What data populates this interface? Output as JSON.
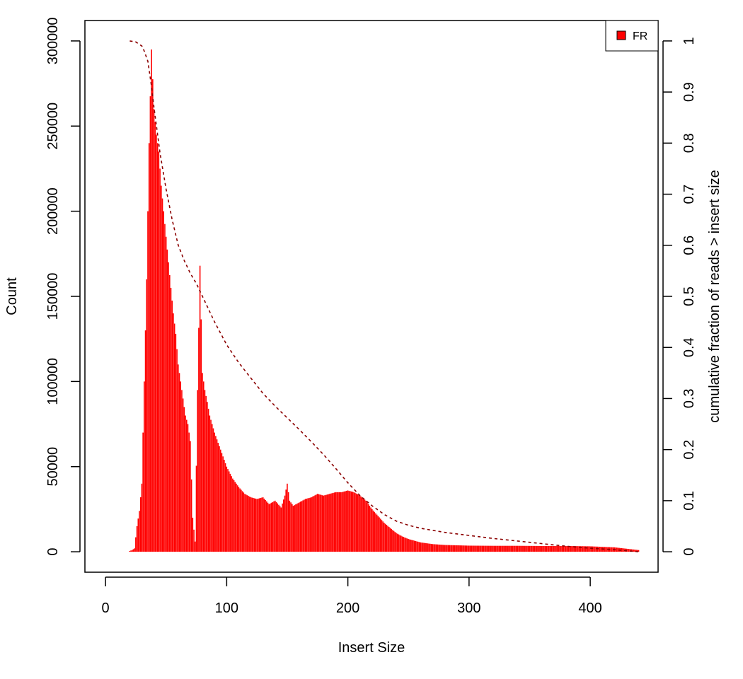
{
  "chart_data": {
    "type": "bar",
    "title": "",
    "xlabel": "Insert Size",
    "ylabel": "Count",
    "y2label": "cumulative fraction of reads > insert size",
    "xlim": [
      -17,
      456
    ],
    "ylim": [
      -12000,
      312000
    ],
    "y2lim": [
      -0.04,
      1.04
    ],
    "x_ticks": [
      0,
      100,
      200,
      300,
      400
    ],
    "y_ticks": [
      0,
      50000,
      100000,
      150000,
      200000,
      250000,
      300000
    ],
    "y2_ticks": [
      0,
      0.1,
      0.2,
      0.3,
      0.4,
      0.5,
      0.6,
      0.7,
      0.8,
      0.9,
      1
    ],
    "grid": false,
    "legend_position": "top-right",
    "series": [
      {
        "name": "FR",
        "color": "#ff0000",
        "x": [
          20,
          22,
          24,
          26,
          28,
          30,
          32,
          34,
          36,
          38,
          40,
          42,
          44,
          46,
          48,
          50,
          52,
          54,
          56,
          58,
          60,
          62,
          64,
          66,
          68,
          70,
          72,
          74,
          76,
          78,
          80,
          82,
          84,
          86,
          88,
          90,
          92,
          94,
          96,
          98,
          100,
          105,
          110,
          115,
          120,
          125,
          130,
          135,
          140,
          145,
          148,
          150,
          152,
          155,
          160,
          165,
          170,
          175,
          180,
          185,
          190,
          195,
          200,
          205,
          210,
          215,
          220,
          225,
          230,
          235,
          240,
          245,
          250,
          255,
          260,
          270,
          280,
          290,
          300,
          320,
          340,
          360,
          380,
          400,
          420,
          430,
          440
        ],
        "values": [
          500,
          1000,
          2000,
          15000,
          24000,
          40000,
          100000,
          160000,
          240000,
          295000,
          260000,
          245000,
          235000,
          215000,
          200000,
          185000,
          170000,
          155000,
          140000,
          128000,
          110000,
          100000,
          90000,
          80000,
          75000,
          65000,
          20000,
          6000,
          95000,
          168000,
          105000,
          95000,
          88000,
          80000,
          75000,
          70000,
          66000,
          62000,
          58000,
          54000,
          50000,
          43000,
          38000,
          34000,
          32000,
          31000,
          32000,
          28000,
          30000,
          26000,
          33000,
          40000,
          30000,
          27000,
          29000,
          31000,
          32000,
          34000,
          33000,
          34000,
          35000,
          35000,
          36000,
          35000,
          33000,
          30000,
          25000,
          21000,
          17000,
          14000,
          11000,
          9000,
          7500,
          6500,
          5500,
          4500,
          4000,
          3800,
          3600,
          3500,
          3500,
          3400,
          3400,
          3200,
          2600,
          1800,
          1000
        ]
      },
      {
        "name": "",
        "axis": "right",
        "style": "dashed",
        "color": "#8b0000",
        "x": [
          20,
          25,
          30,
          32,
          35,
          38,
          40,
          45,
          50,
          55,
          60,
          65,
          70,
          75,
          80,
          90,
          100,
          110,
          120,
          130,
          140,
          150,
          160,
          170,
          180,
          190,
          200,
          210,
          220,
          230,
          240,
          250,
          260,
          280,
          300,
          320,
          340,
          360,
          380,
          400,
          420,
          440
        ],
        "values": [
          1.0,
          0.998,
          0.99,
          0.98,
          0.96,
          0.91,
          0.87,
          0.78,
          0.71,
          0.65,
          0.6,
          0.57,
          0.545,
          0.525,
          0.5,
          0.45,
          0.405,
          0.37,
          0.34,
          0.31,
          0.285,
          0.262,
          0.239,
          0.215,
          0.19,
          0.163,
          0.135,
          0.11,
          0.09,
          0.073,
          0.06,
          0.052,
          0.046,
          0.038,
          0.032,
          0.026,
          0.021,
          0.016,
          0.011,
          0.007,
          0.004,
          0.0
        ]
      }
    ]
  }
}
